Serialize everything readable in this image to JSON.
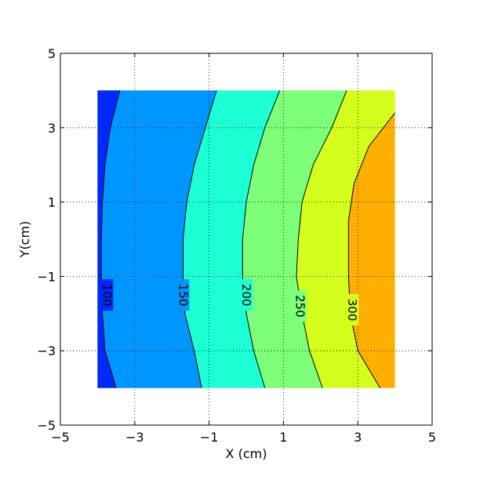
{
  "chart_data": {
    "type": "contour",
    "xlabel": "X (cm)",
    "ylabel": "Y(cm)",
    "xlim": [
      -5,
      5
    ],
    "ylim": [
      -5,
      5
    ],
    "xticks": [
      "−5",
      "−3",
      "−1",
      "1",
      "3",
      "5"
    ],
    "yticks": [
      "−5",
      "−3",
      "−1",
      "1",
      "3",
      "5"
    ],
    "grid": true,
    "data_extent": {
      "x": [
        -4,
        4
      ],
      "y": [
        -4,
        4
      ]
    },
    "levels": [
      100,
      150,
      200,
      250,
      300
    ],
    "level_labels": [
      "100",
      "150",
      "200",
      "250",
      "300"
    ],
    "fill_colors": [
      "#0029ff",
      "#0096ff",
      "#1dffd4",
      "#7dff7a",
      "#d4ff1d",
      "#ffaf00"
    ],
    "contours": [
      {
        "level": 100,
        "label": "100",
        "label_at": [
          -3.75,
          -1.5
        ],
        "points": [
          [
            -3.4,
            4
          ],
          [
            -3.66,
            3
          ],
          [
            -3.8,
            2
          ],
          [
            -3.87,
            1
          ],
          [
            -3.9,
            0
          ],
          [
            -3.9,
            -1
          ],
          [
            -3.87,
            -2
          ],
          [
            -3.8,
            -3
          ],
          [
            -3.5,
            -4
          ]
        ]
      },
      {
        "level": 150,
        "label": "150",
        "label_at": [
          -1.7,
          -1.5
        ],
        "points": [
          [
            -0.8,
            4
          ],
          [
            -1.1,
            3
          ],
          [
            -1.4,
            2
          ],
          [
            -1.6,
            1
          ],
          [
            -1.7,
            0
          ],
          [
            -1.7,
            -1
          ],
          [
            -1.65,
            -2
          ],
          [
            -1.4,
            -3
          ],
          [
            -1.2,
            -4
          ]
        ]
      },
      {
        "level": 200,
        "label": "200",
        "label_at": [
          0,
          -1.5
        ],
        "points": [
          [
            0.9,
            4
          ],
          [
            0.5,
            3
          ],
          [
            0.2,
            2
          ],
          [
            0,
            1
          ],
          [
            -0.1,
            0
          ],
          [
            -0.1,
            -1
          ],
          [
            0,
            -2
          ],
          [
            0.2,
            -3
          ],
          [
            0.5,
            -4
          ]
        ]
      },
      {
        "level": 250,
        "label": "250",
        "label_at": [
          1.45,
          -1.8
        ],
        "points": [
          [
            2.7,
            4
          ],
          [
            2.3,
            3
          ],
          [
            1.8,
            2
          ],
          [
            1.5,
            1
          ],
          [
            1.4,
            0
          ],
          [
            1.35,
            -1
          ],
          [
            1.5,
            -2
          ],
          [
            1.7,
            -3
          ],
          [
            2.05,
            -4
          ]
        ]
      },
      {
        "level": 300,
        "label": "300",
        "label_at": [
          2.85,
          -1.9
        ],
        "points": [
          [
            4,
            3.4
          ],
          [
            3.3,
            2.5
          ],
          [
            2.9,
            1.5
          ],
          [
            2.75,
            0.5
          ],
          [
            2.75,
            -1
          ],
          [
            2.8,
            -2
          ],
          [
            3,
            -3
          ],
          [
            3.6,
            -4
          ]
        ]
      }
    ]
  }
}
